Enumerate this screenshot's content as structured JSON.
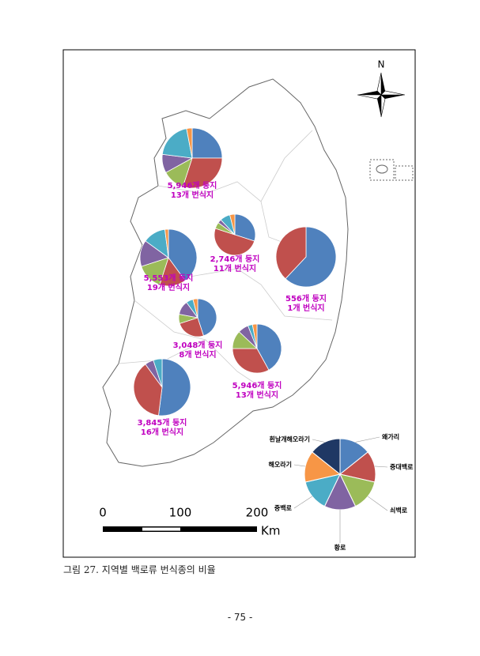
{
  "figure": {
    "north": "N",
    "species": [
      {
        "name": "왜가리",
        "color": "#4f81bd"
      },
      {
        "name": "중대백로",
        "color": "#c0504d"
      },
      {
        "name": "쇠백로",
        "color": "#9bbb59"
      },
      {
        "name": "황로",
        "color": "#8064a2"
      },
      {
        "name": "중백로",
        "color": "#4bacc6"
      },
      {
        "name": "해오라기",
        "color": "#f79646"
      },
      {
        "name": "흰날개해오라기",
        "color": "#1f3864"
      }
    ],
    "regions": [
      {
        "nests": "5,946개 둥지",
        "sites": "13개 번식지",
        "shares": [
          25,
          30,
          12,
          10,
          20,
          3,
          0
        ]
      },
      {
        "nests": "5,553개 둥지",
        "sites": "19개 번식지",
        "shares": [
          40,
          15,
          15,
          15,
          13,
          2,
          0
        ]
      },
      {
        "nests": "2,746개 둥지",
        "sites": "11개 번식지",
        "shares": [
          30,
          50,
          5,
          3,
          8,
          4,
          0
        ]
      },
      {
        "nests": "556개 둥지",
        "sites": "1개 번식지",
        "shares": [
          62,
          38,
          0,
          0,
          0,
          0,
          0
        ]
      },
      {
        "nests": "3,048개 둥지",
        "sites": "8개 번식지",
        "shares": [
          45,
          25,
          8,
          12,
          6,
          4,
          0
        ]
      },
      {
        "nests": "5,946개 둥지",
        "sites": "13개 번식지",
        "shares": [
          42,
          33,
          12,
          7,
          3,
          3,
          0
        ]
      },
      {
        "nests": "3,845개 둥지",
        "sites": "16개 번식지",
        "shares": [
          52,
          38,
          0,
          5,
          5,
          0,
          0
        ]
      }
    ],
    "scale": {
      "ticks": [
        "0",
        "100",
        "200"
      ],
      "unit": "Km"
    }
  },
  "caption": "그림 27. 지역별 백로류 번식종의 비율",
  "page_number": "- 75 -"
}
